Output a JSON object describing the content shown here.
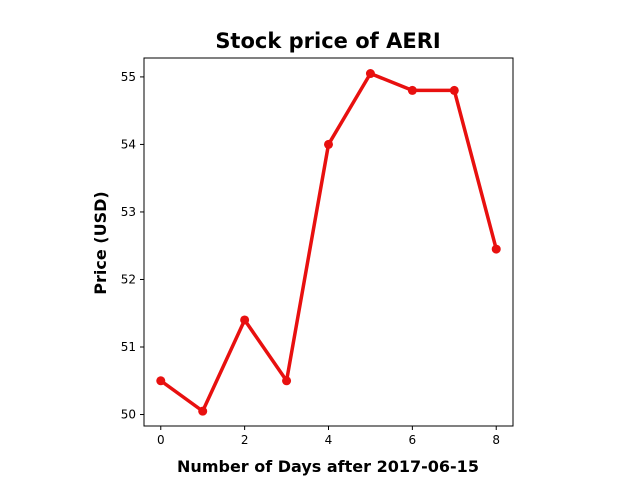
{
  "chart_data": {
    "type": "line",
    "title": "Stock price of AERI",
    "xlabel": "Number of Days after 2017-06-15",
    "ylabel": "Price (USD)",
    "x": [
      0,
      1,
      2,
      3,
      4,
      5,
      6,
      7,
      8
    ],
    "series": [
      {
        "values": [
          50.5,
          50.05,
          51.4,
          50.5,
          54.0,
          55.05,
          54.8,
          54.8,
          52.45
        ],
        "color": "#e8100f"
      }
    ],
    "xlim": [
      -0.4,
      8.4
    ],
    "ylim": [
      49.83,
      55.28
    ],
    "xticks": [
      0,
      2,
      4,
      6,
      8
    ],
    "yticks": [
      50,
      51,
      52,
      53,
      54,
      55
    ],
    "xtick_labels": [
      "0",
      "2",
      "4",
      "6",
      "8"
    ],
    "ytick_labels": [
      "50",
      "51",
      "52",
      "53",
      "54",
      "55"
    ],
    "grid": false,
    "markers": true
  }
}
